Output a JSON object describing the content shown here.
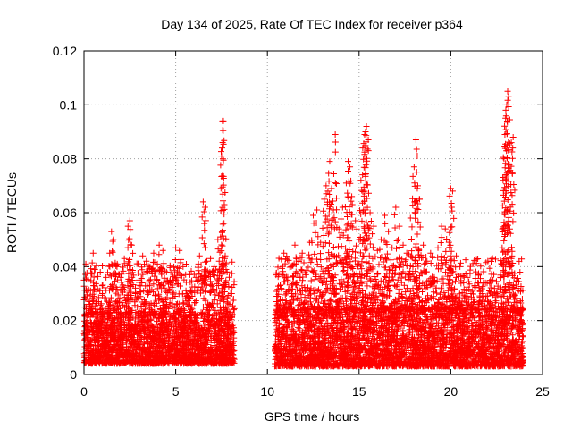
{
  "chart_data": {
    "type": "scatter",
    "title": "Day 134 of 2025, Rate Of TEC Index for receiver p364",
    "xlabel": "GPS time / hours",
    "ylabel": "ROTI / TECUs",
    "xlim": [
      0,
      25
    ],
    "ylim": [
      0,
      0.12
    ],
    "xticks": [
      "0",
      "5",
      "10",
      "15",
      "20",
      "25"
    ],
    "yticks": [
      "0",
      "0.02",
      "0.04",
      "0.06",
      "0.08",
      "0.1",
      "0.12"
    ],
    "grid": true,
    "marker_color": "#ff0000",
    "series": [
      {
        "points": [
          [
            0.0,
            0.035
          ],
          [
            0.1,
            0.041
          ],
          [
            0.15,
            0.028
          ],
          [
            0.3,
            0.027
          ],
          [
            0.4,
            0.025
          ],
          [
            0.5,
            0.045
          ],
          [
            0.6,
            0.039
          ],
          [
            0.8,
            0.027
          ],
          [
            1.0,
            0.03
          ],
          [
            1.2,
            0.036
          ],
          [
            1.4,
            0.045
          ],
          [
            1.5,
            0.053
          ],
          [
            1.6,
            0.05
          ],
          [
            1.8,
            0.04
          ],
          [
            2.0,
            0.036
          ],
          [
            2.2,
            0.043
          ],
          [
            2.4,
            0.055
          ],
          [
            2.5,
            0.057
          ],
          [
            2.6,
            0.048
          ],
          [
            2.8,
            0.03
          ],
          [
            3.0,
            0.035
          ],
          [
            3.2,
            0.044
          ],
          [
            3.4,
            0.042
          ],
          [
            3.6,
            0.04
          ],
          [
            3.8,
            0.045
          ],
          [
            4.0,
            0.041
          ],
          [
            4.1,
            0.048
          ],
          [
            4.3,
            0.046
          ],
          [
            4.5,
            0.038
          ],
          [
            4.7,
            0.035
          ],
          [
            4.9,
            0.04
          ],
          [
            5.0,
            0.047
          ],
          [
            5.2,
            0.046
          ],
          [
            5.4,
            0.04
          ],
          [
            5.6,
            0.03
          ],
          [
            5.9,
            0.029
          ],
          [
            6.1,
            0.036
          ],
          [
            6.3,
            0.044
          ],
          [
            6.5,
            0.064
          ],
          [
            6.6,
            0.062
          ],
          [
            6.7,
            0.042
          ],
          [
            6.9,
            0.043
          ],
          [
            7.1,
            0.04
          ],
          [
            7.3,
            0.05
          ],
          [
            7.45,
            0.051
          ],
          [
            7.5,
            0.081
          ],
          [
            7.55,
            0.094
          ],
          [
            7.6,
            0.094
          ],
          [
            7.65,
            0.063
          ],
          [
            7.7,
            0.044
          ],
          [
            7.8,
            0.038
          ],
          [
            8.0,
            0.03
          ],
          [
            8.1,
            0.022
          ],
          [
            10.5,
            0.027
          ],
          [
            10.7,
            0.033
          ],
          [
            10.9,
            0.045
          ],
          [
            11.1,
            0.035
          ],
          [
            11.3,
            0.04
          ],
          [
            11.5,
            0.048
          ],
          [
            11.7,
            0.042
          ],
          [
            11.9,
            0.045
          ],
          [
            12.1,
            0.037
          ],
          [
            12.3,
            0.049
          ],
          [
            12.5,
            0.059
          ],
          [
            12.7,
            0.061
          ],
          [
            12.9,
            0.049
          ],
          [
            13.1,
            0.065
          ],
          [
            13.2,
            0.07
          ],
          [
            13.3,
            0.068
          ],
          [
            13.4,
            0.079
          ],
          [
            13.5,
            0.069
          ],
          [
            13.6,
            0.061
          ],
          [
            13.7,
            0.089
          ],
          [
            13.9,
            0.054
          ],
          [
            14.1,
            0.062
          ],
          [
            14.3,
            0.071
          ],
          [
            14.4,
            0.079
          ],
          [
            14.5,
            0.077
          ],
          [
            14.6,
            0.066
          ],
          [
            14.8,
            0.057
          ],
          [
            15.0,
            0.05
          ],
          [
            15.1,
            0.072
          ],
          [
            15.2,
            0.084
          ],
          [
            15.3,
            0.089
          ],
          [
            15.35,
            0.09
          ],
          [
            15.4,
            0.092
          ],
          [
            15.5,
            0.087
          ],
          [
            15.6,
            0.06
          ],
          [
            15.8,
            0.055
          ],
          [
            16.0,
            0.046
          ],
          [
            16.2,
            0.05
          ],
          [
            16.4,
            0.059
          ],
          [
            16.6,
            0.053
          ],
          [
            16.8,
            0.047
          ],
          [
            17.0,
            0.062
          ],
          [
            17.2,
            0.055
          ],
          [
            17.4,
            0.048
          ],
          [
            17.6,
            0.045
          ],
          [
            17.8,
            0.058
          ],
          [
            18.0,
            0.077
          ],
          [
            18.1,
            0.087
          ],
          [
            18.2,
            0.07
          ],
          [
            18.3,
            0.065
          ],
          [
            18.5,
            0.048
          ],
          [
            18.7,
            0.042
          ],
          [
            18.9,
            0.045
          ],
          [
            19.1,
            0.036
          ],
          [
            19.3,
            0.047
          ],
          [
            19.5,
            0.055
          ],
          [
            19.7,
            0.054
          ],
          [
            19.9,
            0.049
          ],
          [
            20.0,
            0.069
          ],
          [
            20.1,
            0.068
          ],
          [
            20.3,
            0.044
          ],
          [
            20.5,
            0.04
          ],
          [
            20.7,
            0.034
          ],
          [
            20.9,
            0.036
          ],
          [
            21.1,
            0.03
          ],
          [
            21.3,
            0.033
          ],
          [
            21.5,
            0.026
          ],
          [
            21.7,
            0.03
          ],
          [
            21.9,
            0.028
          ],
          [
            22.1,
            0.031
          ],
          [
            22.3,
            0.035
          ],
          [
            22.5,
            0.03
          ],
          [
            22.7,
            0.036
          ],
          [
            22.8,
            0.047
          ],
          [
            22.85,
            0.072
          ],
          [
            22.9,
            0.08
          ],
          [
            22.95,
            0.089
          ],
          [
            23.0,
            0.098
          ],
          [
            23.05,
            0.1
          ],
          [
            23.1,
            0.105
          ],
          [
            23.15,
            0.103
          ],
          [
            23.3,
            0.086
          ],
          [
            23.4,
            0.088
          ],
          [
            23.6,
            0.032
          ],
          [
            23.8,
            0.031
          ],
          [
            23.9,
            0.028
          ],
          [
            0.3,
            0.012
          ],
          [
            0.9,
            0.015
          ],
          [
            1.7,
            0.018
          ],
          [
            2.3,
            0.014
          ],
          [
            3.1,
            0.016
          ],
          [
            3.9,
            0.013
          ],
          [
            4.6,
            0.017
          ],
          [
            5.3,
            0.012
          ],
          [
            6.0,
            0.019
          ],
          [
            6.8,
            0.014
          ],
          [
            7.4,
            0.016
          ],
          [
            8.0,
            0.013
          ],
          [
            10.6,
            0.014
          ],
          [
            11.4,
            0.011
          ],
          [
            12.2,
            0.017
          ],
          [
            13.0,
            0.015
          ],
          [
            13.8,
            0.019
          ],
          [
            14.7,
            0.013
          ],
          [
            15.7,
            0.016
          ],
          [
            16.5,
            0.012
          ],
          [
            17.3,
            0.018
          ],
          [
            18.4,
            0.014
          ],
          [
            19.2,
            0.017
          ],
          [
            20.2,
            0.012
          ],
          [
            21.0,
            0.016
          ],
          [
            21.8,
            0.013
          ],
          [
            22.6,
            0.015
          ],
          [
            23.5,
            0.012
          ],
          [
            23.95,
            0.014
          ]
        ],
        "dense_band": [
          {
            "x_start": 0.0,
            "x_end": 8.2,
            "y_min": 0.004,
            "y_max": 0.022
          },
          {
            "x_start": 10.4,
            "x_end": 23.95,
            "y_min": 0.003,
            "y_max": 0.024
          }
        ]
      }
    ]
  }
}
